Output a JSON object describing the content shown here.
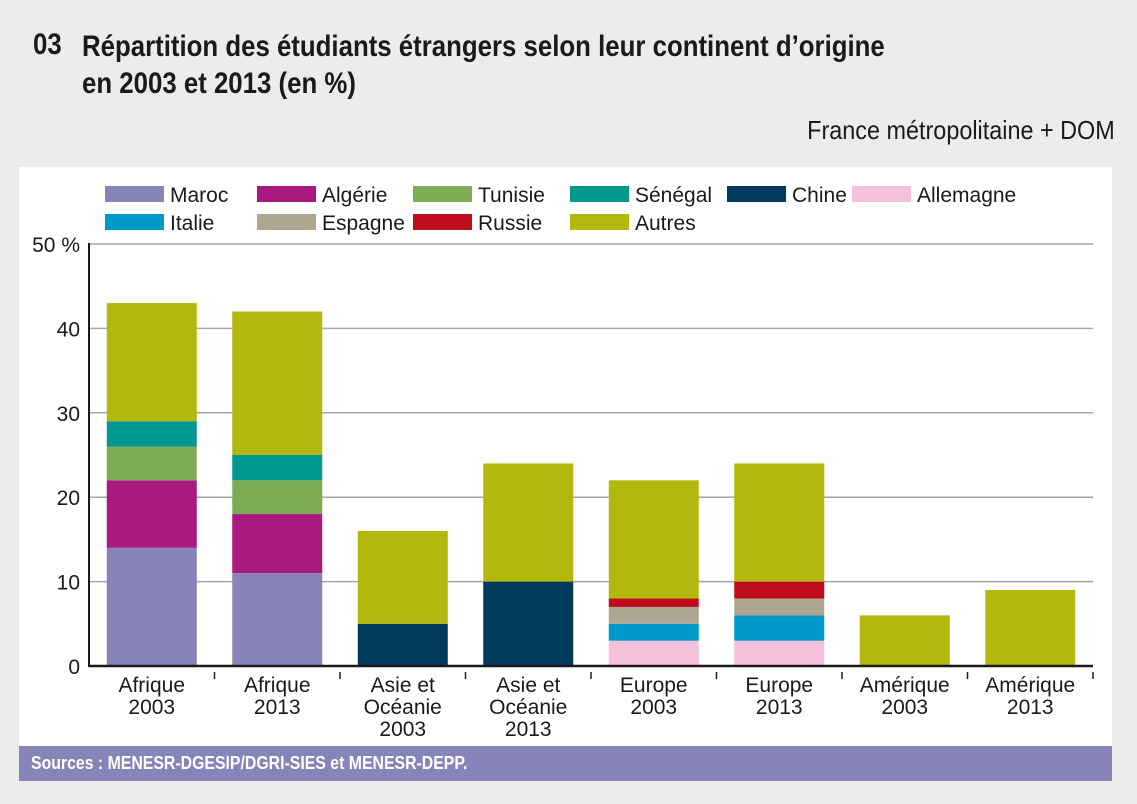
{
  "header": {
    "number": "03",
    "title_line1": "Répartition des étudiants étrangers selon leur continent d’origine",
    "title_line2": "en 2003 et 2013 (en %)",
    "subtitle": "France métropolitaine + DOM"
  },
  "footer": {
    "sources": "Sources : MENESR-DGESIP/DGRI-SIES et MENESR-DEPP."
  },
  "chart_data": {
    "type": "bar",
    "stacked": true,
    "title": "Répartition des étudiants étrangers selon leur continent d’origine en 2003 et 2013 (en %)",
    "xlabel": "",
    "ylabel": "",
    "ylim": [
      0,
      50
    ],
    "yticks": [
      0,
      10,
      20,
      30,
      40,
      50
    ],
    "ytick_labels": [
      "0",
      "10",
      "20",
      "30",
      "40",
      "50 %"
    ],
    "grid": true,
    "legend_position": "top",
    "categories": [
      [
        "Afrique",
        "2003"
      ],
      [
        "Afrique",
        "2013"
      ],
      [
        "Asie et",
        "Océanie",
        "2003"
      ],
      [
        "Asie et",
        "Océanie",
        "2013"
      ],
      [
        "Europe",
        "2003"
      ],
      [
        "Europe",
        "2013"
      ],
      [
        "Amérique",
        "2003"
      ],
      [
        "Amérique",
        "2013"
      ]
    ],
    "series": [
      {
        "name": "Maroc",
        "color": "#8883b9",
        "values": [
          14,
          11,
          0,
          0,
          0,
          0,
          0,
          0
        ]
      },
      {
        "name": "Algérie",
        "color": "#a9197f",
        "values": [
          8,
          7,
          0,
          0,
          0,
          0,
          0,
          0
        ]
      },
      {
        "name": "Tunisie",
        "color": "#7dac55",
        "values": [
          4,
          4,
          0,
          0,
          0,
          0,
          0,
          0
        ]
      },
      {
        "name": "Sénégal",
        "color": "#009891",
        "values": [
          3,
          3,
          0,
          0,
          0,
          0,
          0,
          0
        ]
      },
      {
        "name": "Chine",
        "color": "#003a5d",
        "values": [
          0,
          0,
          5,
          10,
          0,
          0,
          0,
          0
        ]
      },
      {
        "name": "Allemagne",
        "color": "#f4c1d8",
        "values": [
          0,
          0,
          0,
          0,
          3,
          3,
          0,
          0
        ]
      },
      {
        "name": "Italie",
        "color": "#0099c9",
        "values": [
          0,
          0,
          0,
          0,
          2,
          3,
          0,
          0
        ]
      },
      {
        "name": "Espagne",
        "color": "#ada690",
        "values": [
          0,
          0,
          0,
          0,
          2,
          2,
          0,
          0
        ]
      },
      {
        "name": "Russie",
        "color": "#c00d1e",
        "values": [
          0,
          0,
          0,
          0,
          1,
          2,
          0,
          0
        ]
      },
      {
        "name": "Autres",
        "color": "#b2b80c",
        "values": [
          14,
          17,
          11,
          14,
          14,
          14,
          6,
          9
        ]
      }
    ],
    "legend_order": [
      [
        "Maroc",
        "Algérie",
        "Tunisie",
        "Sénégal",
        "Chine",
        "Allemagne"
      ],
      [
        "Italie",
        "Espagne",
        "Russie",
        "Autres"
      ]
    ]
  }
}
